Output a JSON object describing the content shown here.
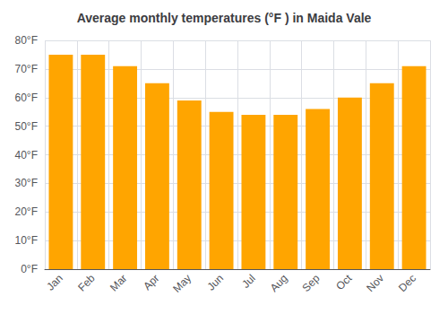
{
  "chart_data": {
    "type": "bar",
    "title": "Average monthly temperatures (°F ) in Maida Vale",
    "categories": [
      "Jan",
      "Feb",
      "Mar",
      "Apr",
      "May",
      "Jun",
      "Jul",
      "Aug",
      "Sep",
      "Oct",
      "Nov",
      "Dec"
    ],
    "values": [
      75,
      75,
      71,
      65,
      59,
      55,
      54,
      54,
      56,
      60,
      65,
      71
    ],
    "color": "#FFA500",
    "ylim": [
      0,
      80
    ],
    "yticks": [
      {
        "value": 0,
        "label": "0°F"
      },
      {
        "value": 10,
        "label": "10°F"
      },
      {
        "value": 20,
        "label": "20°F"
      },
      {
        "value": 30,
        "label": "30°F"
      },
      {
        "value": 40,
        "label": "40°F"
      },
      {
        "value": 50,
        "label": "50°F"
      },
      {
        "value": 60,
        "label": "60°F"
      },
      {
        "value": 70,
        "label": "70°F"
      },
      {
        "value": 80,
        "label": "80°F"
      }
    ],
    "grid": true
  }
}
